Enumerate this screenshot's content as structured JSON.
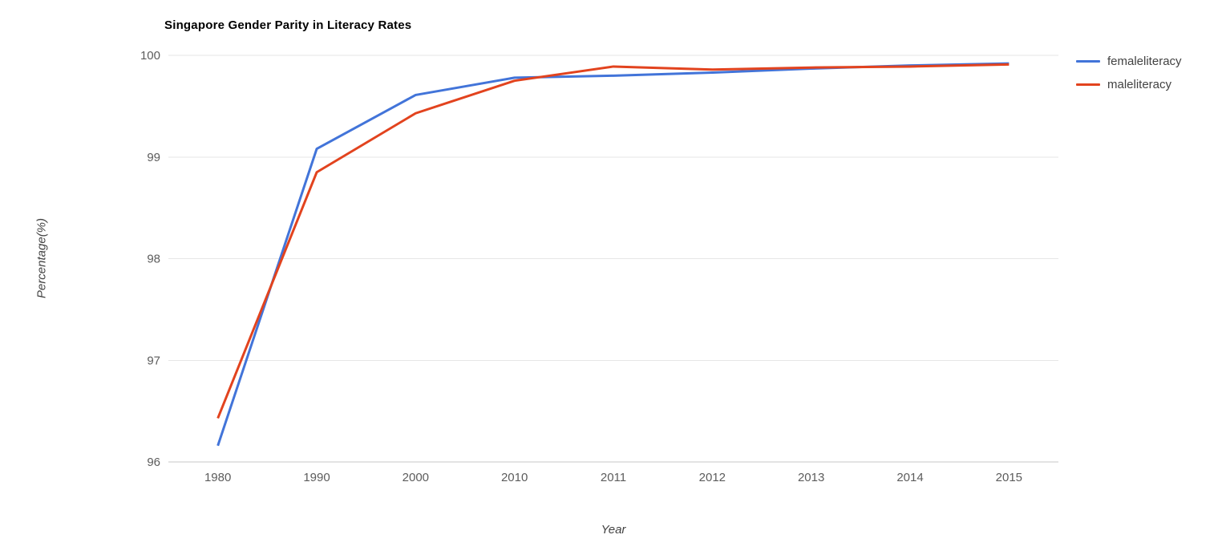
{
  "chart": {
    "title": "Singapore Gender Parity in Literacy Rates",
    "xlabel": "Year",
    "ylabel": "Percentage(%)"
  },
  "chart_data": {
    "type": "line",
    "title": "Singapore Gender Parity in Literacy Rates",
    "xlabel": "Year",
    "ylabel": "Percentage(%)",
    "categories": [
      "1980",
      "1990",
      "2000",
      "2010",
      "2011",
      "2012",
      "2013",
      "2014",
      "2015"
    ],
    "series": [
      {
        "name": "femaleliteracy",
        "color": "#4274d9",
        "values": [
          96.16,
          99.08,
          99.61,
          99.78,
          99.8,
          99.83,
          99.87,
          99.9,
          99.92
        ]
      },
      {
        "name": "maleliteracy",
        "color": "#e2431e",
        "values": [
          96.43,
          98.85,
          99.43,
          99.75,
          99.89,
          99.86,
          99.88,
          99.89,
          99.91
        ]
      }
    ],
    "ylim": [
      96,
      100
    ],
    "yticks": [
      96,
      97,
      98,
      99,
      100
    ],
    "grid": true,
    "legend_position": "right",
    "grid_color": "#e6e6e6",
    "baseline_color": "#c7c7c7",
    "tick_color": "#5c5c5c",
    "title_color": "#000000",
    "axis_label_color": "#424242",
    "legend_text_color": "#424242",
    "line_width": 3
  }
}
